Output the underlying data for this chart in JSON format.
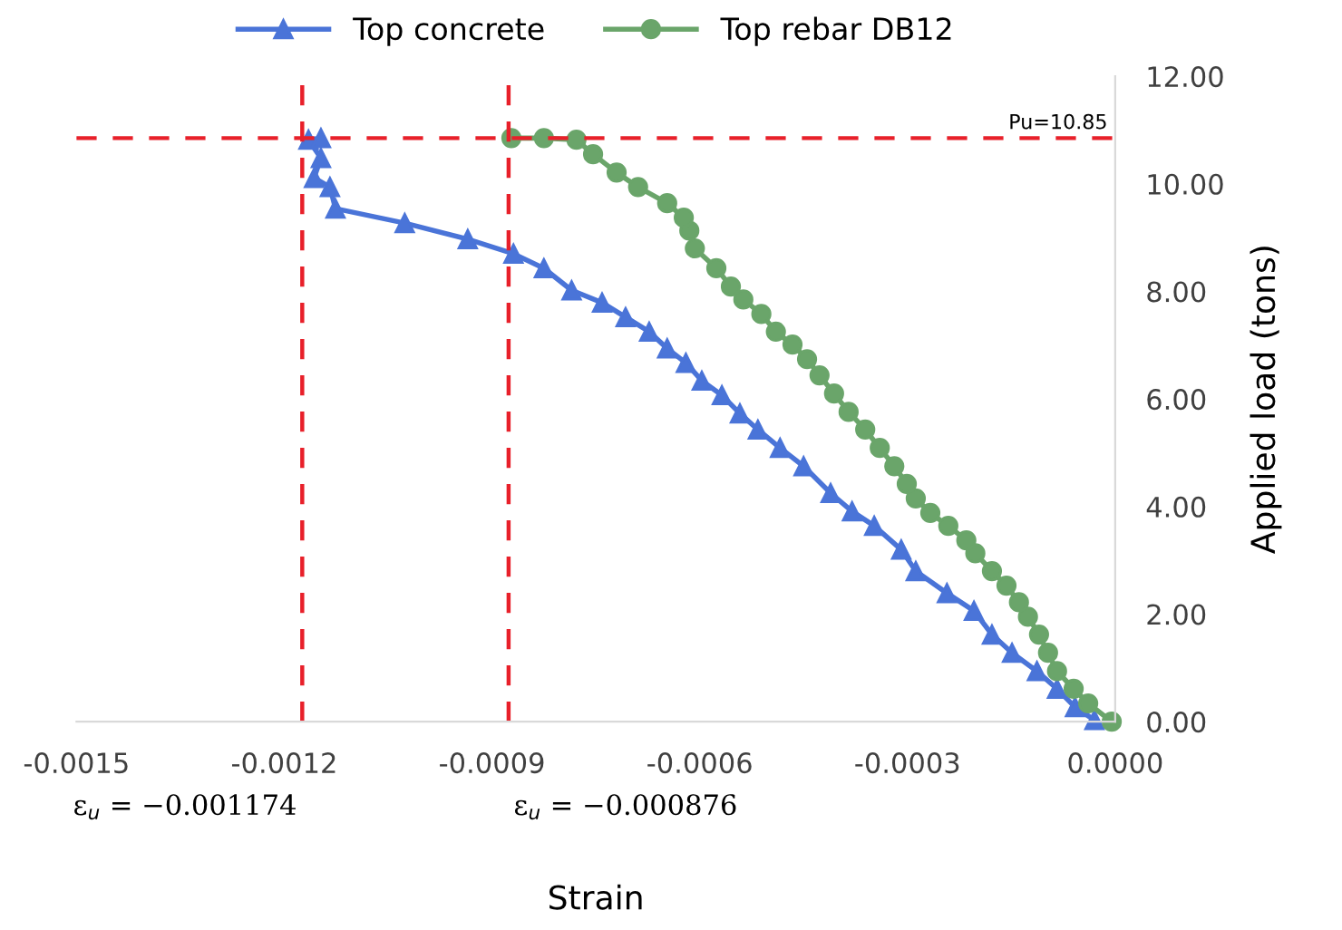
{
  "chart_data": {
    "type": "line",
    "xlabel": "Strain",
    "ylabel": "Applied load (tons)",
    "xlim": [
      -0.0015,
      0.0
    ],
    "xticks": [
      {
        "value": -0.0015,
        "label": "-0.0015"
      },
      {
        "value": -0.0012,
        "label": "-0.0012"
      },
      {
        "value": -0.0009,
        "label": "-0.0009"
      },
      {
        "value": -0.0006,
        "label": "-0.0006"
      },
      {
        "value": -0.0003,
        "label": "-0.0003"
      },
      {
        "value": 0.0,
        "label": "0.0000"
      }
    ],
    "ylim": [
      0,
      12
    ],
    "yticks": [
      {
        "value": 0,
        "label": "0.00"
      },
      {
        "value": 2,
        "label": "2.00"
      },
      {
        "value": 4,
        "label": "4.00"
      },
      {
        "value": 6,
        "label": "6.00"
      },
      {
        "value": 8,
        "label": "8.00"
      },
      {
        "value": 10,
        "label": "10.00"
      },
      {
        "value": 12,
        "label": "12.00"
      }
    ],
    "grid": false,
    "legend": "top",
    "line_style": "solid",
    "series": [
      {
        "name": "Top concrete",
        "color": "#4a74d8",
        "marker": "triangle",
        "x": [
          -3e-05,
          -5.8e-05,
          -8.4e-05,
          -0.000113,
          -0.000149,
          -0.000178,
          -0.000204,
          -0.000243,
          -0.000288,
          -0.000309,
          -0.000348,
          -0.00038,
          -0.000411,
          -0.00045,
          -0.000484,
          -0.000516,
          -0.000542,
          -0.000568,
          -0.000597,
          -0.00062,
          -0.000647,
          -0.000673,
          -0.000707,
          -0.000741,
          -0.000785,
          -0.000825,
          -0.000869,
          -0.000935,
          -0.001026,
          -0.001126,
          -0.001134,
          -0.001157,
          -0.001147,
          -0.001165,
          -0.001147
        ],
        "values": [
          0.03,
          0.27,
          0.61,
          0.94,
          1.28,
          1.62,
          2.06,
          2.39,
          2.8,
          3.2,
          3.64,
          3.91,
          4.25,
          4.75,
          5.09,
          5.43,
          5.73,
          6.07,
          6.34,
          6.67,
          6.94,
          7.25,
          7.52,
          7.79,
          8.02,
          8.43,
          8.7,
          8.97,
          9.27,
          9.54,
          9.94,
          10.11,
          10.48,
          10.82,
          10.85
        ]
      },
      {
        "name": "Top rebar DB12",
        "color": "#6aa56a",
        "marker": "circle",
        "x": [
          -5e-06,
          -3.9e-05,
          -6e-05,
          -8.4e-05,
          -9.7e-05,
          -0.00011,
          -0.000126,
          -0.000139,
          -0.000157,
          -0.000178,
          -0.000202,
          -0.000215,
          -0.000241,
          -0.000267,
          -0.000288,
          -0.000301,
          -0.000319,
          -0.00034,
          -0.000361,
          -0.000385,
          -0.000406,
          -0.000427,
          -0.000445,
          -0.000466,
          -0.00049,
          -0.000511,
          -0.000537,
          -0.000555,
          -0.000576,
          -0.000607,
          -0.000615,
          -0.000623,
          -0.000647,
          -0.000689,
          -0.00072,
          -0.000754,
          -0.000778,
          -0.000825,
          -0.000872
        ],
        "values": [
          0.0,
          0.34,
          0.61,
          0.94,
          1.28,
          1.62,
          1.95,
          2.22,
          2.53,
          2.8,
          3.13,
          3.37,
          3.64,
          3.88,
          4.15,
          4.42,
          4.75,
          5.09,
          5.43,
          5.76,
          6.1,
          6.44,
          6.74,
          7.01,
          7.25,
          7.58,
          7.85,
          8.09,
          8.43,
          8.8,
          9.13,
          9.37,
          9.64,
          9.94,
          10.21,
          10.55,
          10.82,
          10.85,
          10.85
        ]
      }
    ],
    "ref_lines": [
      {
        "axis": "x",
        "value": -0.001174,
        "label": "ε$_{u}$ = −0.001174",
        "color": "#e8202a",
        "line_style": "dashed"
      },
      {
        "axis": "x",
        "value": -0.000876,
        "label": "ε$_{u}$ = −0.000876",
        "color": "#e8202a",
        "line_style": "dashed"
      },
      {
        "axis": "y",
        "value": 10.85,
        "label": "Pu=10.85",
        "color": "#e8202a",
        "line_style": "dashed"
      }
    ]
  }
}
